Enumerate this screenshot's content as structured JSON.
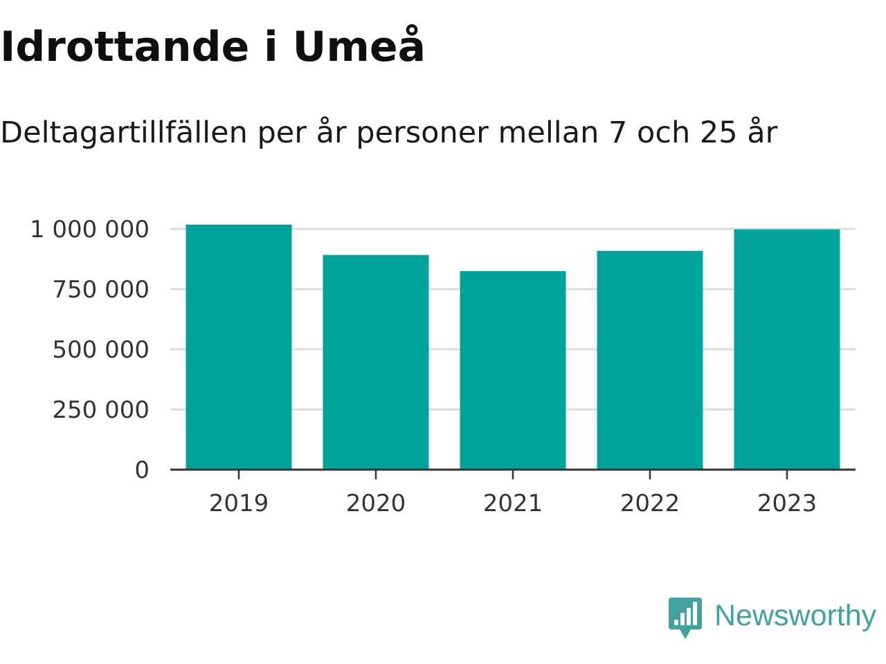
{
  "title": "Idrottande i Umeå",
  "subtitle": "Deltagartillfällen per år personer mellan 7 och 25 år",
  "brand": {
    "name": "Newsworthy",
    "logo_icon": "bar-chart-speech-bubble-icon",
    "color": "#43a29d"
  },
  "chart_data": {
    "type": "bar",
    "categories": [
      "2019",
      "2020",
      "2021",
      "2022",
      "2023"
    ],
    "values": [
      1018000,
      892000,
      825000,
      909000,
      998000
    ],
    "title": "",
    "xlabel": "",
    "ylabel": "",
    "ylim": [
      0,
      1000000
    ],
    "yticks": [
      0,
      250000,
      500000,
      750000,
      1000000
    ],
    "ytick_labels": [
      "0",
      "250 000",
      "500 000",
      "750 000",
      "1 000 000"
    ],
    "grid": true,
    "legend": "none",
    "colors": {
      "bar": "#00a39a",
      "grid": "#dcdcdc",
      "axis": "#333333",
      "tick_text": "#333333"
    }
  }
}
